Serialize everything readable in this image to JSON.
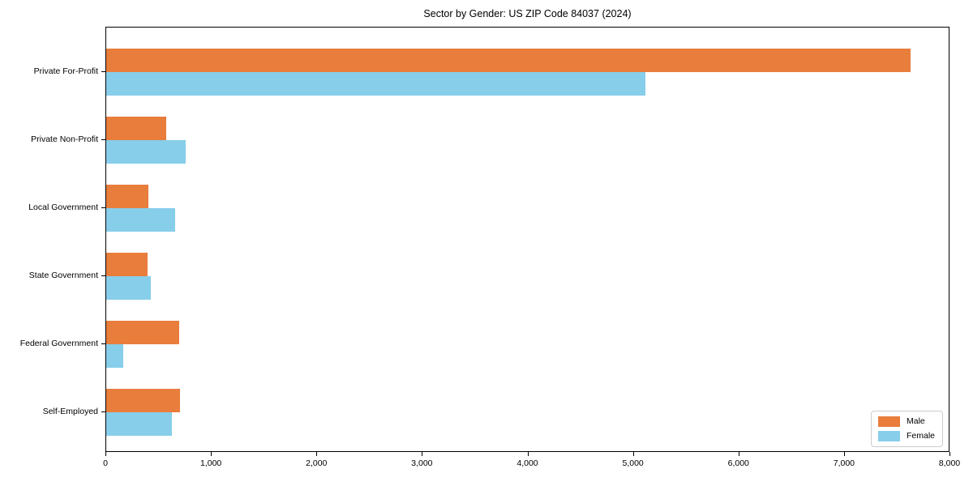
{
  "chart_data": {
    "type": "bar",
    "orientation": "horizontal",
    "title": "Sector by Gender: US ZIP Code 84037 (2024)",
    "categories": [
      "Private For-Profit",
      "Private Non-Profit",
      "Local Government",
      "State Government",
      "Federal Government",
      "Self-Employed"
    ],
    "series": [
      {
        "name": "Male",
        "color": "#e87d3c",
        "values": [
          7620,
          565,
          400,
          390,
          690,
          700
        ]
      },
      {
        "name": "Female",
        "color": "#87ceeb",
        "values": [
          5110,
          755,
          650,
          425,
          160,
          620
        ]
      }
    ],
    "xlim": [
      0,
      8000
    ],
    "x_ticks": [
      0,
      1000,
      2000,
      3000,
      4000,
      5000,
      6000,
      7000,
      8000
    ],
    "x_tick_labels": [
      "0",
      "1,000",
      "2,000",
      "3,000",
      "4,000",
      "5,000",
      "6,000",
      "7,000",
      "8,000"
    ],
    "legend_position": "lower right",
    "grid": false
  }
}
